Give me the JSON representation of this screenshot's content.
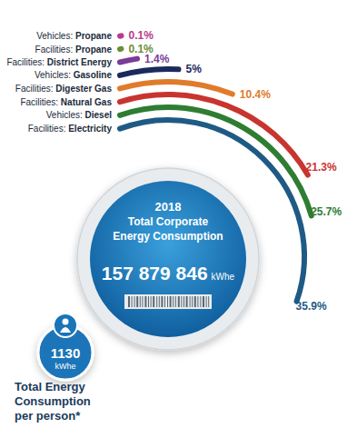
{
  "chart_data": {
    "type": "radial_bar",
    "title": [
      "2018",
      "Total Corporate",
      "Energy Consumption"
    ],
    "categories": [
      "Vehicles: Propane",
      "Facilities: Propane",
      "Facilities: District Energy",
      "Vehicles: Gasoline",
      "Facilities: Digester Gas",
      "Facilities: Natural Gas",
      "Vehicles: Diesel",
      "Facilities: Electricity"
    ],
    "values": [
      0.1,
      0.1,
      1.4,
      5,
      10.4,
      21.3,
      25.7,
      35.9
    ],
    "value_labels": [
      "0.1%",
      "0.1%",
      "1.4%",
      "5%",
      "10.4%",
      "21.3%",
      "25.7%",
      "35.9%"
    ],
    "colors": [
      "#b83b8f",
      "#6b8e3a",
      "#7b3c98",
      "#1b2a5c",
      "#e07b2c",
      "#c8352f",
      "#2e7d32",
      "#1f5a85"
    ],
    "data_labels": true,
    "tick_labels": false,
    "annotations": {
      "total": {
        "value": 157879846,
        "label": "157 879 846",
        "unit": "kWhe"
      },
      "per_person": {
        "value": 1130,
        "unit": "kWhe",
        "caption": [
          "Total Energy",
          "Consumption",
          "per person*"
        ]
      }
    }
  }
}
